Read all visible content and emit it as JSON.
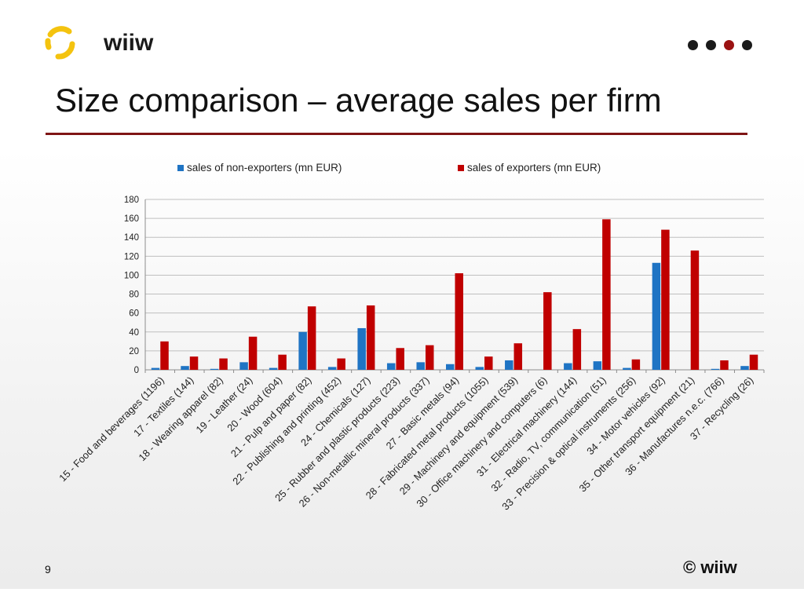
{
  "header": {
    "logo_text": "wiiw",
    "title": "Size comparison – average sales per firm",
    "nav_dots": [
      "dark",
      "dark",
      "accent",
      "dark"
    ]
  },
  "colors": {
    "accent": "#9b1212",
    "title_rule": "#7f1515",
    "logo_yellow": "#f4c30f",
    "dot_dark": "#1a1a1a",
    "series_non_exporters": "#1f74c4",
    "series_exporters": "#c00000",
    "grid": "#bfbfbf"
  },
  "footer": {
    "page_number": "9",
    "copyright": "© wiiw"
  },
  "chart_data": {
    "type": "bar",
    "title": "",
    "xlabel": "",
    "ylabel": "",
    "ylim": [
      0,
      180
    ],
    "yticks": [
      0,
      20,
      40,
      60,
      80,
      100,
      120,
      140,
      160,
      180
    ],
    "grid": true,
    "legend_position": "top",
    "categories": [
      "15 - Food and beverages (1196)",
      "17 - Textiles (144)",
      "18 - Wearing apparel (82)",
      "19 - Leather (24)",
      "20 - Wood (604)",
      "21 - Pulp and paper (82)",
      "22 - Publishing and printing (452)",
      "24 - Chemicals  (127)",
      "25 - Rubber and plastic products (223)",
      "26 - Non-metallic mineral products (337)",
      "27 - Basic metals (94)",
      "28 - Fabricated metal products (1055)",
      "29 - Machinery and equipment (539)",
      "30 - Office machinery and computers (6)",
      "31 - Electrical machinery  (144)",
      "32 - Radio, TV, communication (51)",
      "33 - Precision & optical instruments (256)",
      "34 - Motor vehicles (92)",
      "35 - Other transport equipment (21)",
      "36 - Manufactures n.e.c. (766)",
      "37 - Recycling (26)"
    ],
    "series": [
      {
        "name": "sales of non-exporters (mn EUR)",
        "color": "#1f74c4",
        "values": [
          2,
          4,
          1,
          8,
          2,
          40,
          3,
          44,
          7,
          8,
          6,
          3,
          10,
          0,
          7,
          9,
          2,
          113,
          0,
          1,
          4
        ]
      },
      {
        "name": "sales of exporters (mn EUR)",
        "color": "#c00000",
        "values": [
          30,
          14,
          12,
          35,
          16,
          67,
          12,
          68,
          23,
          26,
          102,
          14,
          28,
          82,
          43,
          159,
          11,
          148,
          126,
          10,
          16
        ]
      }
    ]
  }
}
